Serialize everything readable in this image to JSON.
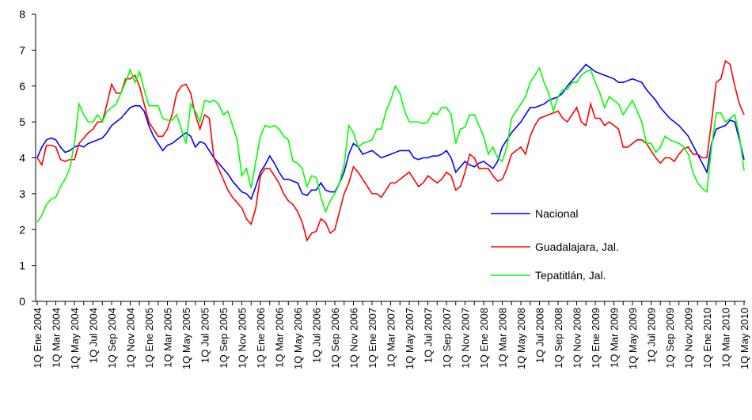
{
  "chart_data": {
    "type": "line",
    "categories": [
      "1Q Ene 2004",
      null,
      null,
      null,
      "1Q Mar 2004",
      null,
      null,
      null,
      "1Q May 2004",
      null,
      null,
      null,
      "1Q Jul 2004",
      null,
      null,
      null,
      "1Q Sep 2004",
      null,
      null,
      null,
      "1Q Nov 2004",
      null,
      null,
      null,
      "1Q Ene 2005",
      null,
      null,
      null,
      "1Q Mar 2005",
      null,
      null,
      null,
      "1Q May 2005",
      null,
      null,
      null,
      "1Q Jul 2005",
      null,
      null,
      null,
      "1Q Sep 2005",
      null,
      null,
      null,
      "1Q Nov 2005",
      null,
      null,
      null,
      "1Q Ene 2006",
      null,
      null,
      null,
      "1Q Mar 2006",
      null,
      null,
      null,
      "1Q May 2006",
      null,
      null,
      null,
      "1Q Jul 2006",
      null,
      null,
      null,
      "1Q Sep 2006",
      null,
      null,
      null,
      "1Q Nov 2006",
      null,
      null,
      null,
      "1Q Ene 2007",
      null,
      null,
      null,
      "1Q Mar 2007",
      null,
      null,
      null,
      "1Q May 2007",
      null,
      null,
      null,
      "1Q Jul 2007",
      null,
      null,
      null,
      "1Q Sep 2007",
      null,
      null,
      null,
      "1Q Nov 2007",
      null,
      null,
      null,
      "1Q Ene 2008",
      null,
      null,
      null,
      "1Q Mar 2008",
      null,
      null,
      null,
      "1Q May 2008",
      null,
      null,
      null,
      "1Q Jul 2008",
      null,
      null,
      null,
      "1Q Sep 2008",
      null,
      null,
      null,
      "1Q Nov 2008",
      null,
      null,
      null,
      "1Q Ene 2009",
      null,
      null,
      null,
      "1Q Mar 2009",
      null,
      null,
      null,
      "1Q May 2009",
      null,
      null,
      null,
      "1Q Jul 2009",
      null,
      null,
      null,
      "1Q Sep 2009",
      null,
      null,
      null,
      "1Q Nov 2009",
      null,
      null,
      null,
      "1Q Ene 2010",
      null,
      null,
      null,
      "1Q Mar 2010",
      null,
      null,
      null,
      "1Q May 2010"
    ],
    "series": [
      {
        "name": "Nacional",
        "color": "#0000ff",
        "values": [
          4.0,
          4.3,
          4.5,
          4.55,
          4.5,
          4.3,
          4.15,
          4.2,
          4.3,
          4.35,
          4.3,
          4.4,
          4.45,
          4.5,
          4.55,
          4.7,
          4.9,
          5.0,
          5.1,
          5.25,
          5.4,
          5.45,
          5.45,
          5.3,
          4.9,
          4.6,
          4.4,
          4.2,
          4.35,
          4.4,
          4.5,
          4.6,
          4.7,
          4.6,
          4.3,
          4.45,
          4.4,
          4.2,
          4.0,
          3.85,
          3.7,
          3.55,
          3.35,
          3.2,
          3.05,
          3.0,
          2.85,
          3.2,
          3.6,
          3.8,
          4.05,
          3.85,
          3.6,
          3.4,
          3.4,
          3.35,
          3.3,
          3.0,
          2.95,
          3.1,
          3.1,
          3.3,
          3.1,
          3.05,
          3.05,
          3.3,
          3.6,
          4.1,
          4.4,
          4.3,
          4.1,
          4.15,
          4.2,
          4.1,
          4.0,
          4.05,
          4.1,
          4.15,
          4.2,
          4.2,
          4.2,
          4.0,
          3.95,
          4.0,
          4.0,
          4.05,
          4.05,
          4.1,
          4.2,
          4.0,
          3.6,
          3.75,
          3.9,
          3.8,
          3.75,
          3.85,
          3.9,
          3.8,
          3.7,
          3.9,
          4.3,
          4.5,
          4.7,
          4.85,
          5.0,
          5.2,
          5.4,
          5.4,
          5.45,
          5.5,
          5.6,
          5.65,
          5.7,
          5.8,
          6.0,
          6.15,
          6.3,
          6.45,
          6.6,
          6.5,
          6.4,
          6.35,
          6.3,
          6.25,
          6.2,
          6.1,
          6.1,
          6.15,
          6.2,
          6.15,
          6.1,
          5.9,
          5.75,
          5.6,
          5.4,
          5.25,
          5.1,
          5.0,
          4.9,
          4.75,
          4.6,
          4.35,
          4.1,
          3.85,
          3.6,
          4.4,
          4.8,
          4.85,
          4.9,
          5.05,
          5.0,
          4.5,
          3.95
        ]
      },
      {
        "name": "Guadalajara, Jal.",
        "color": "#ff0000",
        "values": [
          4.0,
          3.8,
          4.35,
          4.35,
          4.3,
          3.95,
          3.9,
          3.95,
          3.95,
          4.4,
          4.55,
          4.7,
          4.8,
          5.0,
          5.0,
          5.5,
          6.05,
          5.8,
          5.8,
          6.2,
          6.2,
          6.3,
          6.0,
          5.5,
          5.0,
          4.8,
          4.6,
          4.6,
          4.8,
          5.2,
          5.8,
          6.0,
          6.05,
          5.8,
          5.2,
          4.8,
          5.2,
          5.1,
          4.0,
          3.7,
          3.4,
          3.1,
          2.9,
          2.75,
          2.6,
          2.3,
          2.15,
          2.6,
          3.5,
          3.7,
          3.7,
          3.5,
          3.3,
          3.0,
          2.8,
          2.7,
          2.5,
          2.2,
          1.7,
          1.9,
          1.95,
          2.3,
          2.2,
          1.9,
          2.0,
          2.5,
          3.0,
          3.3,
          3.75,
          3.6,
          3.4,
          3.2,
          3.0,
          3.0,
          2.9,
          3.1,
          3.3,
          3.3,
          3.4,
          3.5,
          3.6,
          3.4,
          3.2,
          3.3,
          3.5,
          3.4,
          3.3,
          3.4,
          3.6,
          3.5,
          3.1,
          3.2,
          3.6,
          4.1,
          4.0,
          3.7,
          3.7,
          3.7,
          3.5,
          3.35,
          3.4,
          3.7,
          4.1,
          4.2,
          4.3,
          4.1,
          4.6,
          4.9,
          5.1,
          5.15,
          5.2,
          5.25,
          5.3,
          5.1,
          5.0,
          5.2,
          5.4,
          5.0,
          4.9,
          5.5,
          5.1,
          5.1,
          4.9,
          5.0,
          4.9,
          4.8,
          4.3,
          4.3,
          4.4,
          4.5,
          4.5,
          4.4,
          4.2,
          4.0,
          3.85,
          4.0,
          4.0,
          3.9,
          4.1,
          4.25,
          4.3,
          4.1,
          4.1,
          4.0,
          4.0,
          5.0,
          6.1,
          6.2,
          6.7,
          6.6,
          6.0,
          5.5,
          5.2
        ]
      },
      {
        "name": "Tepatitlán, Jal.",
        "color": "#00ff00",
        "values": [
          2.2,
          2.4,
          2.7,
          2.85,
          2.9,
          3.2,
          3.4,
          3.7,
          4.4,
          5.5,
          5.2,
          5.0,
          5.0,
          5.2,
          5.0,
          5.3,
          5.4,
          5.5,
          5.8,
          6.1,
          6.45,
          6.1,
          6.4,
          5.9,
          5.45,
          5.45,
          5.45,
          5.1,
          5.05,
          5.05,
          5.2,
          4.8,
          4.4,
          5.5,
          5.3,
          5.0,
          5.6,
          5.55,
          5.6,
          5.5,
          5.2,
          5.3,
          4.9,
          4.5,
          3.5,
          3.7,
          3.15,
          3.9,
          4.6,
          4.9,
          4.85,
          4.9,
          4.8,
          4.6,
          4.5,
          3.9,
          3.85,
          3.7,
          3.2,
          3.5,
          3.45,
          2.9,
          2.5,
          2.8,
          3.0,
          3.3,
          3.8,
          4.9,
          4.7,
          4.3,
          4.4,
          4.45,
          4.5,
          4.8,
          4.8,
          5.3,
          5.6,
          6.0,
          5.8,
          5.3,
          5.0,
          5.0,
          5.0,
          4.95,
          5.0,
          5.25,
          5.2,
          5.4,
          5.4,
          5.2,
          4.4,
          4.8,
          4.85,
          5.2,
          5.2,
          4.9,
          4.6,
          4.1,
          4.3,
          4.0,
          3.9,
          4.3,
          5.1,
          5.3,
          5.5,
          5.7,
          6.1,
          6.3,
          6.5,
          6.1,
          5.8,
          5.3,
          5.7,
          5.9,
          5.9,
          6.1,
          6.1,
          6.3,
          6.4,
          6.45,
          6.1,
          5.8,
          5.4,
          5.7,
          5.6,
          5.5,
          5.2,
          5.4,
          5.6,
          5.3,
          5.0,
          4.4,
          4.4,
          4.15,
          4.3,
          4.6,
          4.5,
          4.45,
          4.4,
          4.3,
          4.1,
          3.6,
          3.3,
          3.15,
          3.05,
          4.3,
          5.25,
          5.25,
          5.0,
          5.1,
          5.2,
          4.6,
          3.65
        ]
      }
    ],
    "ylim": [
      0,
      8
    ],
    "yticks": [
      0,
      1,
      2,
      3,
      4,
      5,
      6,
      7,
      8
    ],
    "grid": false,
    "legend": "right"
  }
}
